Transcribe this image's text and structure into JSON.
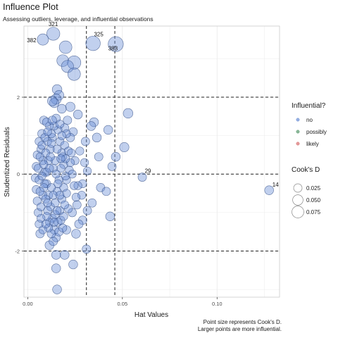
{
  "title": "Influence Plot",
  "subtitle": "Assessing outliers, leverage, and influential observations",
  "caption": [
    "Point size represents Cook's D.",
    "Larger points are more influential."
  ],
  "colors": {
    "no": "#6b8fd6",
    "possibly": "#5a9a6e",
    "likely": "#d97070",
    "grid": "#ebebeb",
    "refline": "#222222"
  },
  "legend": {
    "color_title": "Influential?",
    "color_items": [
      "no",
      "possibly",
      "likely"
    ],
    "size_title": "Cook's D",
    "size_items": [
      "0.025",
      "0.050",
      "0.075"
    ],
    "size_values": [
      0.025,
      0.05,
      0.075
    ]
  },
  "chart_data": {
    "type": "scatter",
    "title": "Influence Plot",
    "xlabel": "Hat Values",
    "ylabel": "Studentized Residuals",
    "xlim": [
      -0.002,
      0.133
    ],
    "ylim": [
      -3.2,
      3.85
    ],
    "x_ticks": [
      0.0,
      0.05,
      0.1
    ],
    "x_tick_labels": [
      "0.00",
      "0.05",
      "0.10"
    ],
    "y_ticks": [
      -2,
      0,
      2
    ],
    "y_tick_labels": [
      "-2",
      "0",
      "2"
    ],
    "reference_lines": {
      "horizontal": [
        -2,
        0,
        2
      ],
      "vertical": [
        0.031,
        0.046
      ]
    },
    "grid": true,
    "legend_position": "right",
    "labeled_points": [
      {
        "label": "321",
        "x": 0.0135,
        "y": 3.65,
        "cooksd": 0.055
      },
      {
        "label": "382",
        "x": 0.008,
        "y": 3.5,
        "cooksd": 0.035
      },
      {
        "label": "325",
        "x": 0.0345,
        "y": 3.4,
        "cooksd": 0.075
      },
      {
        "label": "383",
        "x": 0.0465,
        "y": 3.38,
        "cooksd": 0.085
      },
      {
        "label": "29",
        "x": 0.0605,
        "y": -0.08,
        "cooksd": 0.012
      },
      {
        "label": "14",
        "x": 0.1275,
        "y": -0.42,
        "cooksd": 0.015
      }
    ],
    "points": [
      {
        "x": 0.02,
        "y": 3.3,
        "d": 0.05
      },
      {
        "x": 0.0185,
        "y": 2.95,
        "d": 0.04
      },
      {
        "x": 0.0245,
        "y": 2.9,
        "d": 0.06
      },
      {
        "x": 0.021,
        "y": 2.8,
        "d": 0.045
      },
      {
        "x": 0.0245,
        "y": 2.6,
        "d": 0.05
      },
      {
        "x": 0.0155,
        "y": 2.2,
        "d": 0.02
      },
      {
        "x": 0.0165,
        "y": 2.05,
        "d": 0.02
      },
      {
        "x": 0.015,
        "y": 1.95,
        "d": 0.025
      },
      {
        "x": 0.014,
        "y": 1.85,
        "d": 0.018
      },
      {
        "x": 0.013,
        "y": 1.9,
        "d": 0.02
      },
      {
        "x": 0.0225,
        "y": 1.75,
        "d": 0.018
      },
      {
        "x": 0.018,
        "y": 1.7,
        "d": 0.015
      },
      {
        "x": 0.0265,
        "y": 1.55,
        "d": 0.015
      },
      {
        "x": 0.053,
        "y": 1.58,
        "d": 0.02
      },
      {
        "x": 0.035,
        "y": 1.35,
        "d": 0.015
      },
      {
        "x": 0.0335,
        "y": 1.25,
        "d": 0.015
      },
      {
        "x": 0.0425,
        "y": 1.15,
        "d": 0.015
      },
      {
        "x": 0.0365,
        "y": 0.95,
        "d": 0.015
      },
      {
        "x": 0.0305,
        "y": 0.85,
        "d": 0.012
      },
      {
        "x": 0.051,
        "y": 0.7,
        "d": 0.018
      },
      {
        "x": 0.0375,
        "y": 0.45,
        "d": 0.012
      },
      {
        "x": 0.0465,
        "y": 0.45,
        "d": 0.015
      },
      {
        "x": 0.0445,
        "y": 0.2,
        "d": 0.012
      },
      {
        "x": 0.0315,
        "y": 0.08,
        "d": 0.01
      },
      {
        "x": 0.029,
        "y": -0.25,
        "d": 0.01
      },
      {
        "x": 0.0385,
        "y": -0.35,
        "d": 0.012
      },
      {
        "x": 0.0415,
        "y": -0.45,
        "d": 0.012
      },
      {
        "x": 0.034,
        "y": -0.75,
        "d": 0.012
      },
      {
        "x": 0.0315,
        "y": -0.95,
        "d": 0.012
      },
      {
        "x": 0.0435,
        "y": -1.1,
        "d": 0.015
      },
      {
        "x": 0.029,
        "y": -1.2,
        "d": 0.012
      },
      {
        "x": 0.0205,
        "y": -1.45,
        "d": 0.012
      },
      {
        "x": 0.0255,
        "y": -1.55,
        "d": 0.015
      },
      {
        "x": 0.0115,
        "y": -1.85,
        "d": 0.015
      },
      {
        "x": 0.031,
        "y": -1.95,
        "d": 0.012
      },
      {
        "x": 0.0195,
        "y": -2.1,
        "d": 0.015
      },
      {
        "x": 0.015,
        "y": -2.1,
        "d": 0.015
      },
      {
        "x": 0.024,
        "y": -2.35,
        "d": 0.015
      },
      {
        "x": 0.015,
        "y": -2.45,
        "d": 0.015
      },
      {
        "x": 0.0155,
        "y": -3.0,
        "d": 0.015
      },
      {
        "x": 0.0285,
        "y": -0.55,
        "d": 0.01
      },
      {
        "x": 0.0265,
        "y": -0.3,
        "d": 0.01
      },
      {
        "x": 0.025,
        "y": 0.35,
        "d": 0.01
      },
      {
        "x": 0.0275,
        "y": 0.6,
        "d": 0.01
      },
      {
        "x": 0.024,
        "y": 1.1,
        "d": 0.012
      },
      {
        "x": 0.0225,
        "y": 0.95,
        "d": 0.012
      },
      {
        "x": 0.026,
        "y": -0.8,
        "d": 0.012
      },
      {
        "x": 0.0235,
        "y": -1.0,
        "d": 0.012
      },
      {
        "x": 0.022,
        "y": 0.1,
        "d": 0.01
      },
      {
        "x": 0.0205,
        "y": -0.15,
        "d": 0.01
      },
      {
        "x": 0.03,
        "y": 0.3,
        "d": 0.01
      },
      {
        "x": 0.027,
        "y": -1.3,
        "d": 0.012
      },
      {
        "x": 0.021,
        "y": 1.4,
        "d": 0.012
      },
      {
        "x": 0.0195,
        "y": 1.2,
        "d": 0.012
      },
      {
        "x": 0.0085,
        "y": 1.4,
        "d": 0.012
      },
      {
        "x": 0.0075,
        "y": 1.05,
        "d": 0.012
      },
      {
        "x": 0.006,
        "y": 0.85,
        "d": 0.01
      },
      {
        "x": 0.005,
        "y": 0.5,
        "d": 0.01
      },
      {
        "x": 0.0045,
        "y": 0.2,
        "d": 0.01
      },
      {
        "x": 0.004,
        "y": -0.1,
        "d": 0.01
      },
      {
        "x": 0.0045,
        "y": -0.4,
        "d": 0.01
      },
      {
        "x": 0.005,
        "y": -0.7,
        "d": 0.01
      },
      {
        "x": 0.0055,
        "y": -1.0,
        "d": 0.01
      },
      {
        "x": 0.006,
        "y": -1.3,
        "d": 0.01
      },
      {
        "x": 0.0065,
        "y": -1.55,
        "d": 0.012
      },
      {
        "x": 0.007,
        "y": 0.65,
        "d": 0.01
      },
      {
        "x": 0.008,
        "y": 0.35,
        "d": 0.01
      },
      {
        "x": 0.009,
        "y": 0.05,
        "d": 0.01
      },
      {
        "x": 0.01,
        "y": -0.25,
        "d": 0.01
      },
      {
        "x": 0.011,
        "y": -0.55,
        "d": 0.01
      },
      {
        "x": 0.012,
        "y": -0.85,
        "d": 0.01
      },
      {
        "x": 0.013,
        "y": -1.15,
        "d": 0.01
      },
      {
        "x": 0.014,
        "y": -1.45,
        "d": 0.012
      },
      {
        "x": 0.015,
        "y": -1.65,
        "d": 0.012
      },
      {
        "x": 0.016,
        "y": -1.25,
        "d": 0.01
      },
      {
        "x": 0.017,
        "y": -0.95,
        "d": 0.01
      },
      {
        "x": 0.018,
        "y": -0.65,
        "d": 0.01
      },
      {
        "x": 0.019,
        "y": -0.35,
        "d": 0.01
      },
      {
        "x": 0.02,
        "y": -0.05,
        "d": 0.01
      },
      {
        "x": 0.019,
        "y": 0.25,
        "d": 0.01
      },
      {
        "x": 0.018,
        "y": 0.55,
        "d": 0.01
      },
      {
        "x": 0.017,
        "y": 0.85,
        "d": 0.01
      },
      {
        "x": 0.016,
        "y": 1.15,
        "d": 0.01
      },
      {
        "x": 0.015,
        "y": 1.45,
        "d": 0.012
      },
      {
        "x": 0.014,
        "y": 1.25,
        "d": 0.01
      },
      {
        "x": 0.013,
        "y": 0.95,
        "d": 0.01
      },
      {
        "x": 0.012,
        "y": 0.65,
        "d": 0.01
      },
      {
        "x": 0.011,
        "y": 0.35,
        "d": 0.01
      },
      {
        "x": 0.01,
        "y": 0.05,
        "d": 0.01
      },
      {
        "x": 0.009,
        "y": -0.25,
        "d": 0.01
      },
      {
        "x": 0.008,
        "y": -0.55,
        "d": 0.01
      },
      {
        "x": 0.007,
        "y": -0.85,
        "d": 0.01
      },
      {
        "x": 0.006,
        "y": -0.15,
        "d": 0.01
      },
      {
        "x": 0.0055,
        "y": 0.15,
        "d": 0.01
      },
      {
        "x": 0.0065,
        "y": 0.45,
        "d": 0.01
      },
      {
        "x": 0.0075,
        "y": 0.75,
        "d": 0.01
      },
      {
        "x": 0.0085,
        "y": -0.35,
        "d": 0.01
      },
      {
        "x": 0.0095,
        "y": -0.65,
        "d": 0.01
      },
      {
        "x": 0.0105,
        "y": -0.95,
        "d": 0.01
      },
      {
        "x": 0.0115,
        "y": -1.25,
        "d": 0.01
      },
      {
        "x": 0.0125,
        "y": -1.55,
        "d": 0.012
      },
      {
        "x": 0.0135,
        "y": -1.75,
        "d": 0.012
      },
      {
        "x": 0.0145,
        "y": -0.75,
        "d": 0.01
      },
      {
        "x": 0.0155,
        "y": -0.45,
        "d": 0.01
      },
      {
        "x": 0.0165,
        "y": -0.15,
        "d": 0.01
      },
      {
        "x": 0.0175,
        "y": 0.15,
        "d": 0.01
      },
      {
        "x": 0.0185,
        "y": 0.45,
        "d": 0.01
      },
      {
        "x": 0.0195,
        "y": 0.75,
        "d": 0.01
      },
      {
        "x": 0.0205,
        "y": 1.05,
        "d": 0.01
      },
      {
        "x": 0.0215,
        "y": 0.6,
        "d": 0.01
      },
      {
        "x": 0.0225,
        "y": 0.3,
        "d": 0.01
      },
      {
        "x": 0.0235,
        "y": 0.0,
        "d": 0.01
      },
      {
        "x": 0.0245,
        "y": -0.3,
        "d": 0.01
      },
      {
        "x": 0.0255,
        "y": -0.6,
        "d": 0.01
      },
      {
        "x": 0.0215,
        "y": -0.9,
        "d": 0.01
      },
      {
        "x": 0.0175,
        "y": -1.2,
        "d": 0.01
      },
      {
        "x": 0.0165,
        "y": -1.5,
        "d": 0.012
      },
      {
        "x": 0.0185,
        "y": -1.4,
        "d": 0.01
      },
      {
        "x": 0.0125,
        "y": 1.05,
        "d": 0.01
      },
      {
        "x": 0.0115,
        "y": 1.25,
        "d": 0.01
      },
      {
        "x": 0.0105,
        "y": 0.85,
        "d": 0.01
      },
      {
        "x": 0.0095,
        "y": 0.55,
        "d": 0.01
      },
      {
        "x": 0.0085,
        "y": 0.25,
        "d": 0.01
      },
      {
        "x": 0.0075,
        "y": -0.05,
        "d": 0.01
      },
      {
        "x": 0.0065,
        "y": -0.45,
        "d": 0.01
      },
      {
        "x": 0.01,
        "y": -1.1,
        "d": 0.01
      },
      {
        "x": 0.011,
        "y": -1.4,
        "d": 0.01
      },
      {
        "x": 0.0145,
        "y": 0.35,
        "d": 0.01
      },
      {
        "x": 0.0155,
        "y": 0.65,
        "d": 0.01
      },
      {
        "x": 0.0135,
        "y": 0.15,
        "d": 0.01
      },
      {
        "x": 0.0125,
        "y": -0.35,
        "d": 0.01
      },
      {
        "x": 0.0145,
        "y": -1.05,
        "d": 0.01
      },
      {
        "x": 0.0195,
        "y": -0.8,
        "d": 0.01
      },
      {
        "x": 0.0205,
        "y": -0.5,
        "d": 0.01
      },
      {
        "x": 0.023,
        "y": 0.55,
        "d": 0.01
      },
      {
        "x": 0.017,
        "y": 1.3,
        "d": 0.01
      },
      {
        "x": 0.018,
        "y": 1.0,
        "d": 0.01
      },
      {
        "x": 0.02,
        "y": 0.4,
        "d": 0.01
      },
      {
        "x": 0.016,
        "y": -0.25,
        "d": 0.01
      },
      {
        "x": 0.012,
        "y": 0.45,
        "d": 0.01
      },
      {
        "x": 0.009,
        "y": 0.95,
        "d": 0.01
      },
      {
        "x": 0.007,
        "y": -1.15,
        "d": 0.01
      },
      {
        "x": 0.008,
        "y": -1.45,
        "d": 0.01
      },
      {
        "x": 0.0095,
        "y": -1.3,
        "d": 0.01
      },
      {
        "x": 0.0105,
        "y": -0.75,
        "d": 0.01
      },
      {
        "x": 0.0135,
        "y": -0.55,
        "d": 0.01
      },
      {
        "x": 0.0115,
        "y": 0.15,
        "d": 0.01
      },
      {
        "x": 0.0105,
        "y": 1.1,
        "d": 0.01
      },
      {
        "x": 0.01,
        "y": 1.35,
        "d": 0.012
      },
      {
        "x": 0.013,
        "y": 1.4,
        "d": 0.012
      },
      {
        "x": 0.014,
        "y": -1.25,
        "d": 0.01
      },
      {
        "x": 0.0155,
        "y": -0.95,
        "d": 0.01
      },
      {
        "x": 0.019,
        "y": -1.1,
        "d": 0.01
      },
      {
        "x": 0.017,
        "y": -0.55,
        "d": 0.01
      },
      {
        "x": 0.015,
        "y": 0.0,
        "d": 0.01
      },
      {
        "x": 0.0175,
        "y": 0.4,
        "d": 0.01
      },
      {
        "x": 0.0125,
        "y": 0.8,
        "d": 0.01
      }
    ]
  }
}
